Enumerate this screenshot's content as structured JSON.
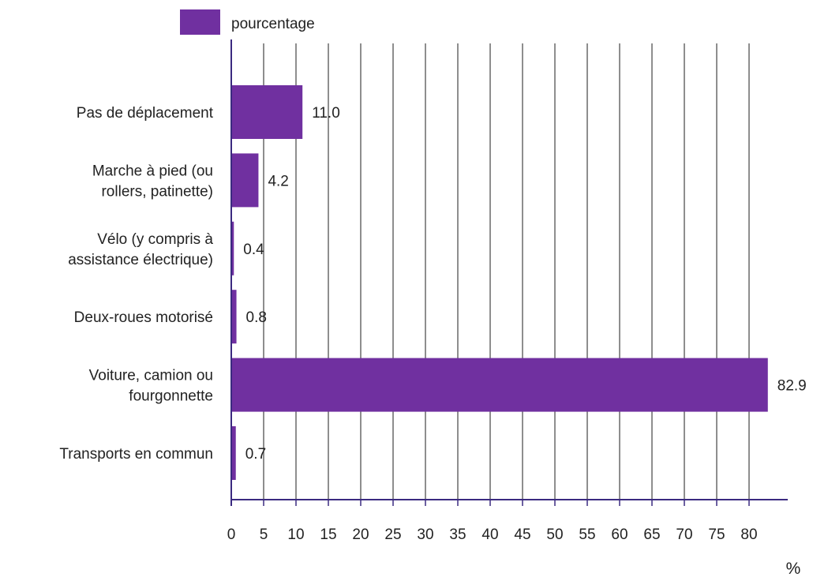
{
  "chart_data": {
    "type": "bar",
    "orientation": "horizontal",
    "categories": [
      [
        "Pas de déplacement"
      ],
      [
        "Marche à pied (ou",
        "rollers, patinette)"
      ],
      [
        "Vélo (y compris à",
        "assistance électrique)"
      ],
      [
        "Deux-roues motorisé"
      ],
      [
        "Voiture, camion ou",
        "fourgonnette"
      ],
      [
        "Transports en commun"
      ]
    ],
    "series": [
      {
        "name": "pourcentage",
        "values": [
          11.0,
          4.2,
          0.4,
          0.8,
          82.9,
          0.7
        ]
      }
    ],
    "value_labels": [
      "11.0",
      "4.2",
      "0.4",
      "0.8",
      "82.9",
      "0.7"
    ],
    "xlim": [
      0,
      85
    ],
    "xticks": [
      0,
      5,
      10,
      15,
      20,
      25,
      30,
      35,
      40,
      45,
      50,
      55,
      60,
      65,
      70,
      75,
      80
    ],
    "xlabel": "%",
    "grid": "vertical",
    "legend": "top",
    "colors": {
      "bar": "#7030a0",
      "grid": "#444444",
      "axis": "#3b2a80"
    }
  }
}
